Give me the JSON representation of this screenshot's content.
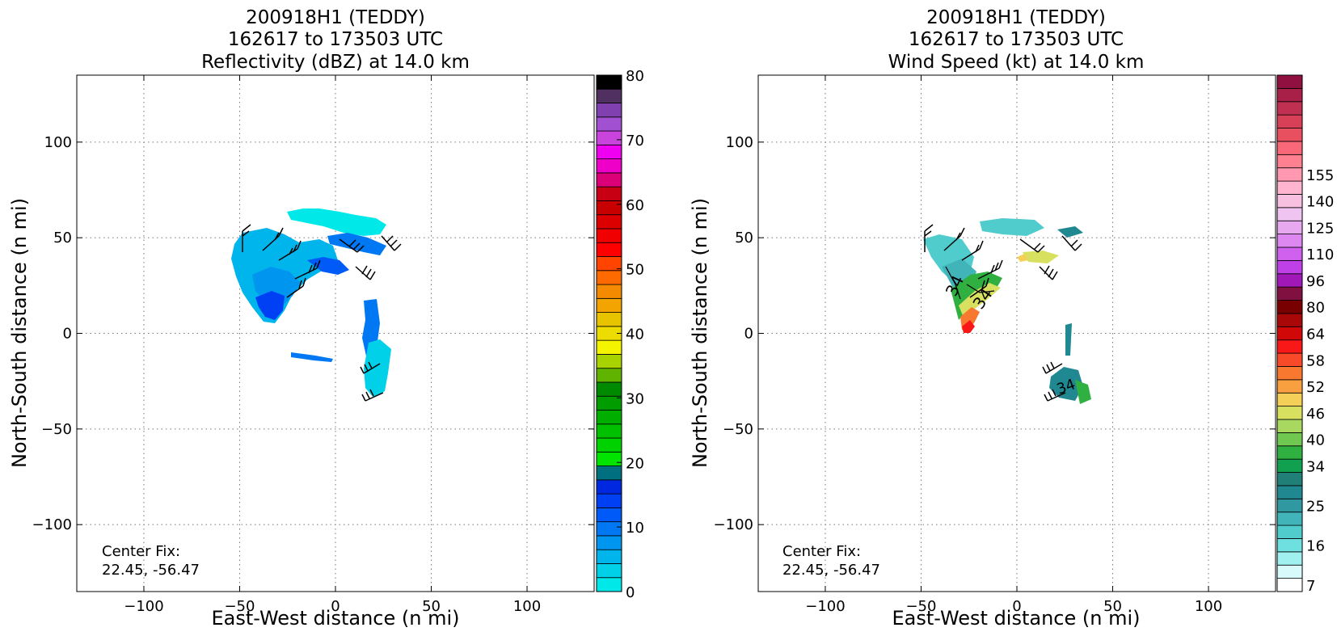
{
  "chart_data": [
    {
      "type": "heatmap",
      "title_lines": [
        "200918H1 (TEDDY)",
        "162617 to 173503 UTC",
        "Reflectivity (dBZ) at 14.0 km"
      ],
      "xlabel": "East-West distance (n mi)",
      "ylabel": "North-South distance (n mi)",
      "xlim": [
        -135,
        135
      ],
      "ylim": [
        -135,
        135
      ],
      "xticks": [
        -100,
        -50,
        0,
        50,
        100
      ],
      "yticks": [
        -100,
        -50,
        0,
        50,
        100
      ],
      "grid": true,
      "annotation": [
        "Center Fix:",
        "22.45, -56.47"
      ],
      "colorbar": {
        "min": 0,
        "max": 80,
        "step": 2.5,
        "tick_values": [
          0,
          10,
          20,
          30,
          40,
          50,
          60,
          70,
          80
        ],
        "tick_labels": [
          "0",
          "10",
          "20",
          "30",
          "40",
          "50",
          "60",
          "70",
          "80"
        ],
        "colors": [
          "#00e8e8",
          "#00d0e8",
          "#00b4ec",
          "#0096f0",
          "#0078f4",
          "#005af8",
          "#0040f4",
          "#0028e0",
          "#007080",
          "#00e400",
          "#00d200",
          "#00c000",
          "#00ae00",
          "#009c00",
          "#008a00",
          "#60b400",
          "#a8d200",
          "#f4f400",
          "#ecdc00",
          "#e8c400",
          "#f4a400",
          "#f48a00",
          "#ff6a00",
          "#ff4400",
          "#ff0000",
          "#f00000",
          "#dc0000",
          "#c80000",
          "#c80014",
          "#dc0078",
          "#ee00c8",
          "#f000f0",
          "#c844dc",
          "#a050d0",
          "#8040b0",
          "#503060",
          "#000000"
        ]
      }
    },
    {
      "type": "heatmap",
      "title_lines": [
        "200918H1 (TEDDY)",
        "162617 to 173503 UTC",
        "Wind Speed (kt) at 14.0 km"
      ],
      "xlabel": "East-West distance (n mi)",
      "ylabel": "North-South distance (n mi)",
      "xlim": [
        -135,
        135
      ],
      "ylim": [
        -135,
        135
      ],
      "xticks": [
        -100,
        -50,
        0,
        50,
        100
      ],
      "yticks": [
        -100,
        -50,
        0,
        50,
        100
      ],
      "grid": true,
      "annotation": [
        "Center Fix:",
        "22.45, -56.47"
      ],
      "contour_labels": [
        "34",
        "34",
        "34"
      ],
      "colorbar": {
        "tick_labels": [
          "7",
          "16",
          "25",
          "34",
          "40",
          "46",
          "52",
          "58",
          "64",
          "80",
          "96",
          "110",
          "125",
          "140",
          "155"
        ],
        "tick_bins": [
          0,
          3,
          6,
          9,
          11,
          13,
          15,
          17,
          19,
          21,
          23,
          25,
          27,
          29,
          31
        ],
        "colors": [
          "#ffffff",
          "#d8fafa",
          "#a0f0f0",
          "#6ee0e0",
          "#50cccc",
          "#40b4b8",
          "#3098a0",
          "#208890",
          "#208078",
          "#10a050",
          "#30b040",
          "#70c850",
          "#a8d860",
          "#d8e060",
          "#f4d058",
          "#f8a040",
          "#f87830",
          "#f84a28",
          "#f81818",
          "#d00808",
          "#a80808",
          "#780000",
          "#801040",
          "#a018b8",
          "#c040e8",
          "#d060ee",
          "#dc88f0",
          "#e8a8f0",
          "#f0c4f0",
          "#f8c0e0",
          "#ffb4d0",
          "#ff98b0",
          "#ff8090",
          "#f86878",
          "#e85060",
          "#d84058",
          "#c03050",
          "#a82048",
          "#901040"
        ]
      }
    }
  ]
}
